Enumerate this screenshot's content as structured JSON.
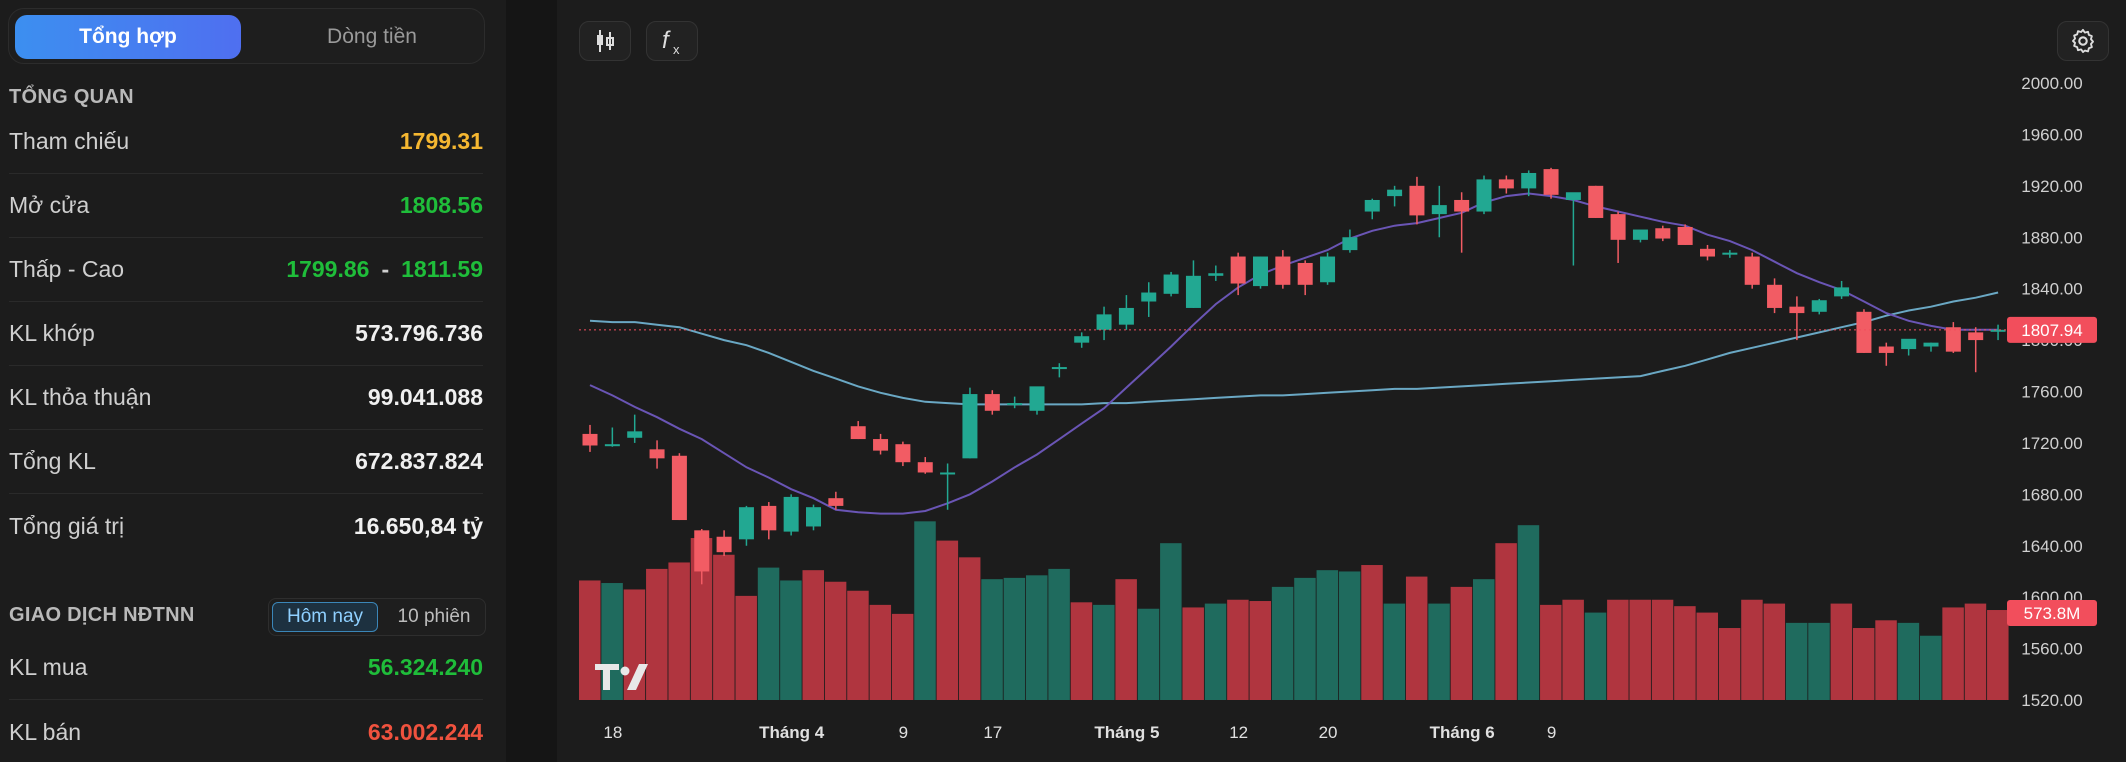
{
  "tabs": {
    "summary": "Tổng hợp",
    "cashflow": "Dòng tiền"
  },
  "overview": {
    "title": "TỔNG QUAN",
    "reference": {
      "label": "Tham chiếu",
      "value": "1799.31"
    },
    "open": {
      "label": "Mở cửa",
      "value": "1808.56"
    },
    "low_high": {
      "label": "Thấp - Cao",
      "low": "1799.86",
      "sep": "-",
      "high": "1811.59"
    },
    "matched_volume": {
      "label": "KL khớp",
      "value": "573.796.736"
    },
    "negotiated_volume": {
      "label": "KL thỏa thuận",
      "value": "99.041.088"
    },
    "total_volume": {
      "label": "Tổng KL",
      "value": "672.837.824"
    },
    "total_value": {
      "label": "Tổng giá trị",
      "value": "16.650,84 tỷ"
    }
  },
  "foreign": {
    "title": "GIAO DỊCH NĐTNN",
    "periods": [
      "Hôm nay",
      "10 phiên"
    ],
    "selected_period": "Hôm nay",
    "buy": {
      "label": "KL mua",
      "value": "56.324.240"
    },
    "sell": {
      "label": "KL bán",
      "value": "63.002.244"
    }
  },
  "toolbar": {
    "candle_icon": "candlestick-icon",
    "indicator_icon": "function-icon",
    "settings_icon": "gear-icon",
    "logo": "TV"
  },
  "colors": {
    "up": "#22a892",
    "down": "#f25c64",
    "vol_up": "#1f6b5e",
    "vol_down": "#b0353f",
    "ma_short": "#6a55b5",
    "ma_long": "#6aa8c4",
    "price_tag": "#f24e5c"
  },
  "chart_data": {
    "type": "candlestick",
    "y_axis_ticks": [
      "2000.00",
      "1960.00",
      "1920.00",
      "1880.00",
      "1840.00",
      "1800.00",
      "1760.00",
      "1720.00",
      "1680.00",
      "1640.00",
      "1600.00",
      "1560.00",
      "1520.00"
    ],
    "ylim": [
      1508,
      2008
    ],
    "x_axis_labels": [
      "18",
      "Tháng 4",
      "9",
      "17",
      "Tháng 5",
      "12",
      "20",
      "Tháng 6",
      "9"
    ],
    "last_price": "1807.94",
    "last_volume": "573.8M",
    "candles": [
      {
        "o": 1727,
        "h": 1734,
        "l": 1713,
        "c": 1718
      },
      {
        "o": 1718,
        "h": 1732,
        "l": 1717,
        "c": 1719
      },
      {
        "o": 1724,
        "h": 1742,
        "l": 1720,
        "c": 1729
      },
      {
        "o": 1715,
        "h": 1722,
        "l": 1700,
        "c": 1708
      },
      {
        "o": 1710,
        "h": 1712,
        "l": 1660,
        "c": 1660
      },
      {
        "o": 1652,
        "h": 1653,
        "l": 1610,
        "c": 1620
      },
      {
        "o": 1647,
        "h": 1652,
        "l": 1632,
        "c": 1635
      },
      {
        "o": 1645,
        "h": 1671,
        "l": 1640,
        "c": 1670
      },
      {
        "o": 1671,
        "h": 1674,
        "l": 1645,
        "c": 1652
      },
      {
        "o": 1651,
        "h": 1680,
        "l": 1648,
        "c": 1678
      },
      {
        "o": 1655,
        "h": 1672,
        "l": 1652,
        "c": 1670
      },
      {
        "o": 1677,
        "h": 1682,
        "l": 1668,
        "c": 1671
      },
      {
        "o": 1733,
        "h": 1737,
        "l": 1723,
        "c": 1723
      },
      {
        "o": 1723,
        "h": 1727,
        "l": 1711,
        "c": 1714
      },
      {
        "o": 1719,
        "h": 1721,
        "l": 1702,
        "c": 1705
      },
      {
        "o": 1705,
        "h": 1709,
        "l": 1696,
        "c": 1697
      },
      {
        "o": 1697,
        "h": 1704,
        "l": 1668,
        "c": 1697
      },
      {
        "o": 1708,
        "h": 1763,
        "l": 1708,
        "c": 1758
      },
      {
        "o": 1758,
        "h": 1761,
        "l": 1742,
        "c": 1745
      },
      {
        "o": 1750,
        "h": 1756,
        "l": 1747,
        "c": 1751
      },
      {
        "o": 1745,
        "h": 1761,
        "l": 1742,
        "c": 1764
      },
      {
        "o": 1779,
        "h": 1782,
        "l": 1771,
        "c": 1779
      },
      {
        "o": 1798,
        "h": 1806,
        "l": 1794,
        "c": 1803
      },
      {
        "o": 1808,
        "h": 1826,
        "l": 1800,
        "c": 1820
      },
      {
        "o": 1812,
        "h": 1835,
        "l": 1808,
        "c": 1825
      },
      {
        "o": 1830,
        "h": 1845,
        "l": 1818,
        "c": 1837
      },
      {
        "o": 1836,
        "h": 1853,
        "l": 1834,
        "c": 1851
      },
      {
        "o": 1825,
        "h": 1862,
        "l": 1825,
        "c": 1850
      },
      {
        "o": 1850,
        "h": 1858,
        "l": 1846,
        "c": 1852
      },
      {
        "o": 1865,
        "h": 1868,
        "l": 1835,
        "c": 1844
      },
      {
        "o": 1842,
        "h": 1865,
        "l": 1840,
        "c": 1865
      },
      {
        "o": 1865,
        "h": 1870,
        "l": 1840,
        "c": 1843
      },
      {
        "o": 1860,
        "h": 1862,
        "l": 1835,
        "c": 1843
      },
      {
        "o": 1845,
        "h": 1868,
        "l": 1843,
        "c": 1865
      },
      {
        "o": 1870,
        "h": 1886,
        "l": 1868,
        "c": 1880
      },
      {
        "o": 1900,
        "h": 1910,
        "l": 1894,
        "c": 1909
      },
      {
        "o": 1912,
        "h": 1920,
        "l": 1904,
        "c": 1917
      },
      {
        "o": 1920,
        "h": 1927,
        "l": 1890,
        "c": 1897
      },
      {
        "o": 1898,
        "h": 1920,
        "l": 1880,
        "c": 1905
      },
      {
        "o": 1909,
        "h": 1915,
        "l": 1868,
        "c": 1900
      },
      {
        "o": 1900,
        "h": 1928,
        "l": 1898,
        "c": 1925
      },
      {
        "o": 1925,
        "h": 1928,
        "l": 1914,
        "c": 1918
      },
      {
        "o": 1918,
        "h": 1932,
        "l": 1912,
        "c": 1930
      },
      {
        "o": 1933,
        "h": 1934,
        "l": 1910,
        "c": 1913
      },
      {
        "o": 1909,
        "h": 1912,
        "l": 1858,
        "c": 1915
      },
      {
        "o": 1920,
        "h": 1920,
        "l": 1895,
        "c": 1895
      },
      {
        "o": 1898,
        "h": 1900,
        "l": 1860,
        "c": 1878
      },
      {
        "o": 1878,
        "h": 1884,
        "l": 1876,
        "c": 1886
      },
      {
        "o": 1887,
        "h": 1889,
        "l": 1877,
        "c": 1879
      },
      {
        "o": 1888,
        "h": 1890,
        "l": 1874,
        "c": 1874
      },
      {
        "o": 1871,
        "h": 1874,
        "l": 1862,
        "c": 1865
      },
      {
        "o": 1868,
        "h": 1870,
        "l": 1864,
        "c": 1868
      },
      {
        "o": 1865,
        "h": 1868,
        "l": 1840,
        "c": 1843
      },
      {
        "o": 1843,
        "h": 1848,
        "l": 1821,
        "c": 1825
      },
      {
        "o": 1826,
        "h": 1834,
        "l": 1800,
        "c": 1821
      },
      {
        "o": 1822,
        "h": 1832,
        "l": 1820,
        "c": 1831
      },
      {
        "o": 1834,
        "h": 1846,
        "l": 1832,
        "c": 1841
      },
      {
        "o": 1822,
        "h": 1824,
        "l": 1790,
        "c": 1790
      },
      {
        "o": 1795,
        "h": 1798,
        "l": 1780,
        "c": 1790
      },
      {
        "o": 1793,
        "h": 1800,
        "l": 1788,
        "c": 1801
      },
      {
        "o": 1795,
        "h": 1798,
        "l": 1791,
        "c": 1798
      },
      {
        "o": 1810,
        "h": 1814,
        "l": 1790,
        "c": 1791
      },
      {
        "o": 1806,
        "h": 1810,
        "l": 1775,
        "c": 1800
      },
      {
        "o": 1808,
        "h": 1812,
        "l": 1800,
        "c": 1808
      }
    ],
    "volumes": [
      {
        "v": 1613,
        "up": false
      },
      {
        "v": 1611,
        "up": true
      },
      {
        "v": 1606,
        "up": false
      },
      {
        "v": 1622,
        "up": false
      },
      {
        "v": 1627,
        "up": false
      },
      {
        "v": 1646,
        "up": false
      },
      {
        "v": 1633,
        "up": false
      },
      {
        "v": 1601,
        "up": false
      },
      {
        "v": 1623,
        "up": true
      },
      {
        "v": 1613,
        "up": true
      },
      {
        "v": 1621,
        "up": false
      },
      {
        "v": 1612,
        "up": false
      },
      {
        "v": 1605,
        "up": false
      },
      {
        "v": 1594,
        "up": false
      },
      {
        "v": 1587,
        "up": false
      },
      {
        "v": 1659,
        "up": true
      },
      {
        "v": 1644,
        "up": false
      },
      {
        "v": 1631,
        "up": false
      },
      {
        "v": 1614,
        "up": true
      },
      {
        "v": 1615,
        "up": true
      },
      {
        "v": 1617,
        "up": true
      },
      {
        "v": 1622,
        "up": true
      },
      {
        "v": 1596,
        "up": false
      },
      {
        "v": 1594,
        "up": true
      },
      {
        "v": 1614,
        "up": false
      },
      {
        "v": 1591,
        "up": true
      },
      {
        "v": 1642,
        "up": true
      },
      {
        "v": 1592,
        "up": false
      },
      {
        "v": 1595,
        "up": true
      },
      {
        "v": 1598,
        "up": false
      },
      {
        "v": 1597,
        "up": false
      },
      {
        "v": 1608,
        "up": true
      },
      {
        "v": 1615,
        "up": true
      },
      {
        "v": 1621,
        "up": true
      },
      {
        "v": 1620,
        "up": true
      },
      {
        "v": 1625,
        "up": false
      },
      {
        "v": 1595,
        "up": true
      },
      {
        "v": 1616,
        "up": false
      },
      {
        "v": 1595,
        "up": true
      },
      {
        "v": 1608,
        "up": false
      },
      {
        "v": 1614,
        "up": true
      },
      {
        "v": 1642,
        "up": false
      },
      {
        "v": 1656,
        "up": true
      },
      {
        "v": 1594,
        "up": false
      },
      {
        "v": 1598,
        "up": false
      },
      {
        "v": 1588,
        "up": true
      },
      {
        "v": 1598,
        "up": false
      },
      {
        "v": 1598,
        "up": false
      },
      {
        "v": 1598,
        "up": false
      },
      {
        "v": 1593,
        "up": false
      },
      {
        "v": 1588,
        "up": false
      },
      {
        "v": 1576,
        "up": false
      },
      {
        "v": 1598,
        "up": false
      },
      {
        "v": 1595,
        "up": false
      },
      {
        "v": 1580,
        "up": true
      },
      {
        "v": 1580,
        "up": true
      },
      {
        "v": 1595,
        "up": false
      },
      {
        "v": 1576,
        "up": false
      },
      {
        "v": 1582,
        "up": false
      },
      {
        "v": 1580,
        "up": true
      },
      {
        "v": 1570,
        "up": true
      },
      {
        "v": 1592,
        "up": false
      },
      {
        "v": 1595,
        "up": false
      },
      {
        "v": 1590,
        "up": false
      }
    ],
    "ma_short": [
      1765,
      1757,
      1748,
      1740,
      1731,
      1723,
      1712,
      1701,
      1693,
      1684,
      1677,
      1668,
      1666,
      1665,
      1665,
      1667,
      1673,
      1680,
      1690,
      1701,
      1711,
      1723,
      1735,
      1747,
      1763,
      1779,
      1795,
      1812,
      1828,
      1841,
      1851,
      1858,
      1864,
      1870,
      1879,
      1885,
      1889,
      1891,
      1895,
      1899,
      1907,
      1912,
      1914,
      1912,
      1909,
      1904,
      1900,
      1896,
      1892,
      1889,
      1882,
      1877,
      1870,
      1861,
      1852,
      1845,
      1839,
      1830,
      1821,
      1815,
      1811,
      1808,
      1808,
      1808
    ],
    "ma_long": [
      1815,
      1814,
      1814,
      1812,
      1810,
      1805,
      1800,
      1796,
      1790,
      1783,
      1776,
      1770,
      1764,
      1759,
      1755,
      1752,
      1751,
      1750,
      1750,
      1750,
      1750,
      1750,
      1750,
      1751,
      1751,
      1752,
      1753,
      1754,
      1755,
      1756,
      1757,
      1757,
      1758,
      1759,
      1760,
      1761,
      1762,
      1762,
      1763,
      1764,
      1765,
      1766,
      1767,
      1768,
      1769,
      1770,
      1771,
      1772,
      1776,
      1780,
      1785,
      1790,
      1794,
      1798,
      1802,
      1806,
      1810,
      1814,
      1819,
      1823,
      1826,
      1830,
      1833,
      1837
    ]
  }
}
